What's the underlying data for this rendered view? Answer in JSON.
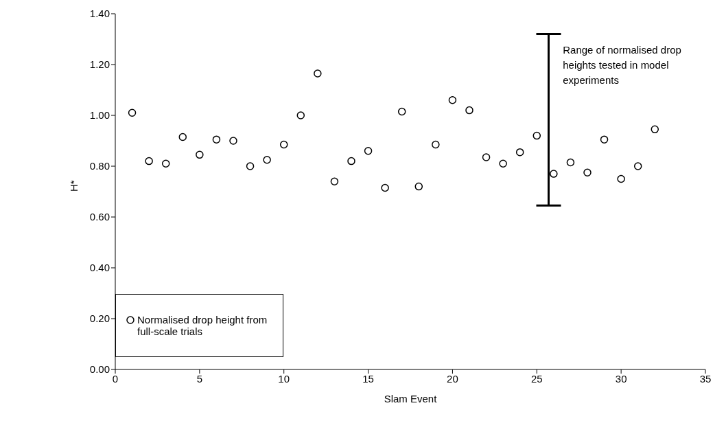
{
  "chart_data": {
    "type": "scatter",
    "xlabel": "Slam Event",
    "ylabel": "H*",
    "xlim": [
      0,
      35
    ],
    "xticks": [
      0,
      5,
      10,
      15,
      20,
      25,
      30,
      35
    ],
    "ylim": [
      0,
      1.4
    ],
    "yticks": [
      {
        "value": 0,
        "label": "0.00"
      },
      {
        "value": 0.2,
        "label": "0.20"
      },
      {
        "value": 0.4,
        "label": "0.40"
      },
      {
        "value": 0.6,
        "label": "0.60"
      },
      {
        "value": 0.8,
        "label": "0.80"
      },
      {
        "value": 1.0,
        "label": "1.00"
      },
      {
        "value": 1.2,
        "label": "1.20"
      },
      {
        "value": 1.4,
        "label": "1.40"
      }
    ],
    "grid": false,
    "legend": "bottom left",
    "marker": "circle",
    "series": [
      {
        "name": "Normalised drop height from full-scale trials",
        "type": "scatter",
        "color": "#000000",
        "x": [
          1,
          2,
          3,
          4,
          5,
          6,
          7,
          8,
          9,
          10,
          11,
          12,
          13,
          14,
          15,
          16,
          17,
          18,
          19,
          20,
          21,
          22,
          23,
          24,
          25,
          26,
          27,
          28,
          29,
          30,
          31,
          32
        ],
        "values": [
          1.01,
          0.82,
          0.81,
          0.915,
          0.845,
          0.905,
          0.9,
          0.8,
          0.825,
          0.885,
          1.0,
          1.165,
          0.74,
          0.82,
          0.86,
          0.715,
          1.015,
          0.72,
          0.885,
          1.06,
          1.02,
          0.835,
          0.81,
          0.855,
          0.92,
          0.77,
          0.815,
          0.775,
          0.905,
          0.75,
          0.8,
          0.945
        ]
      },
      {
        "type": "line",
        "marker": "none",
        "color": "#000000",
        "x": [
          25.7,
          25.7
        ],
        "values": [
          0.645,
          1.32
        ]
      }
    ],
    "annotations": [
      {
        "text": "Range of normalised drop heights tested in model experiments",
        "x": 25.7,
        "y": 1.32
      }
    ]
  }
}
